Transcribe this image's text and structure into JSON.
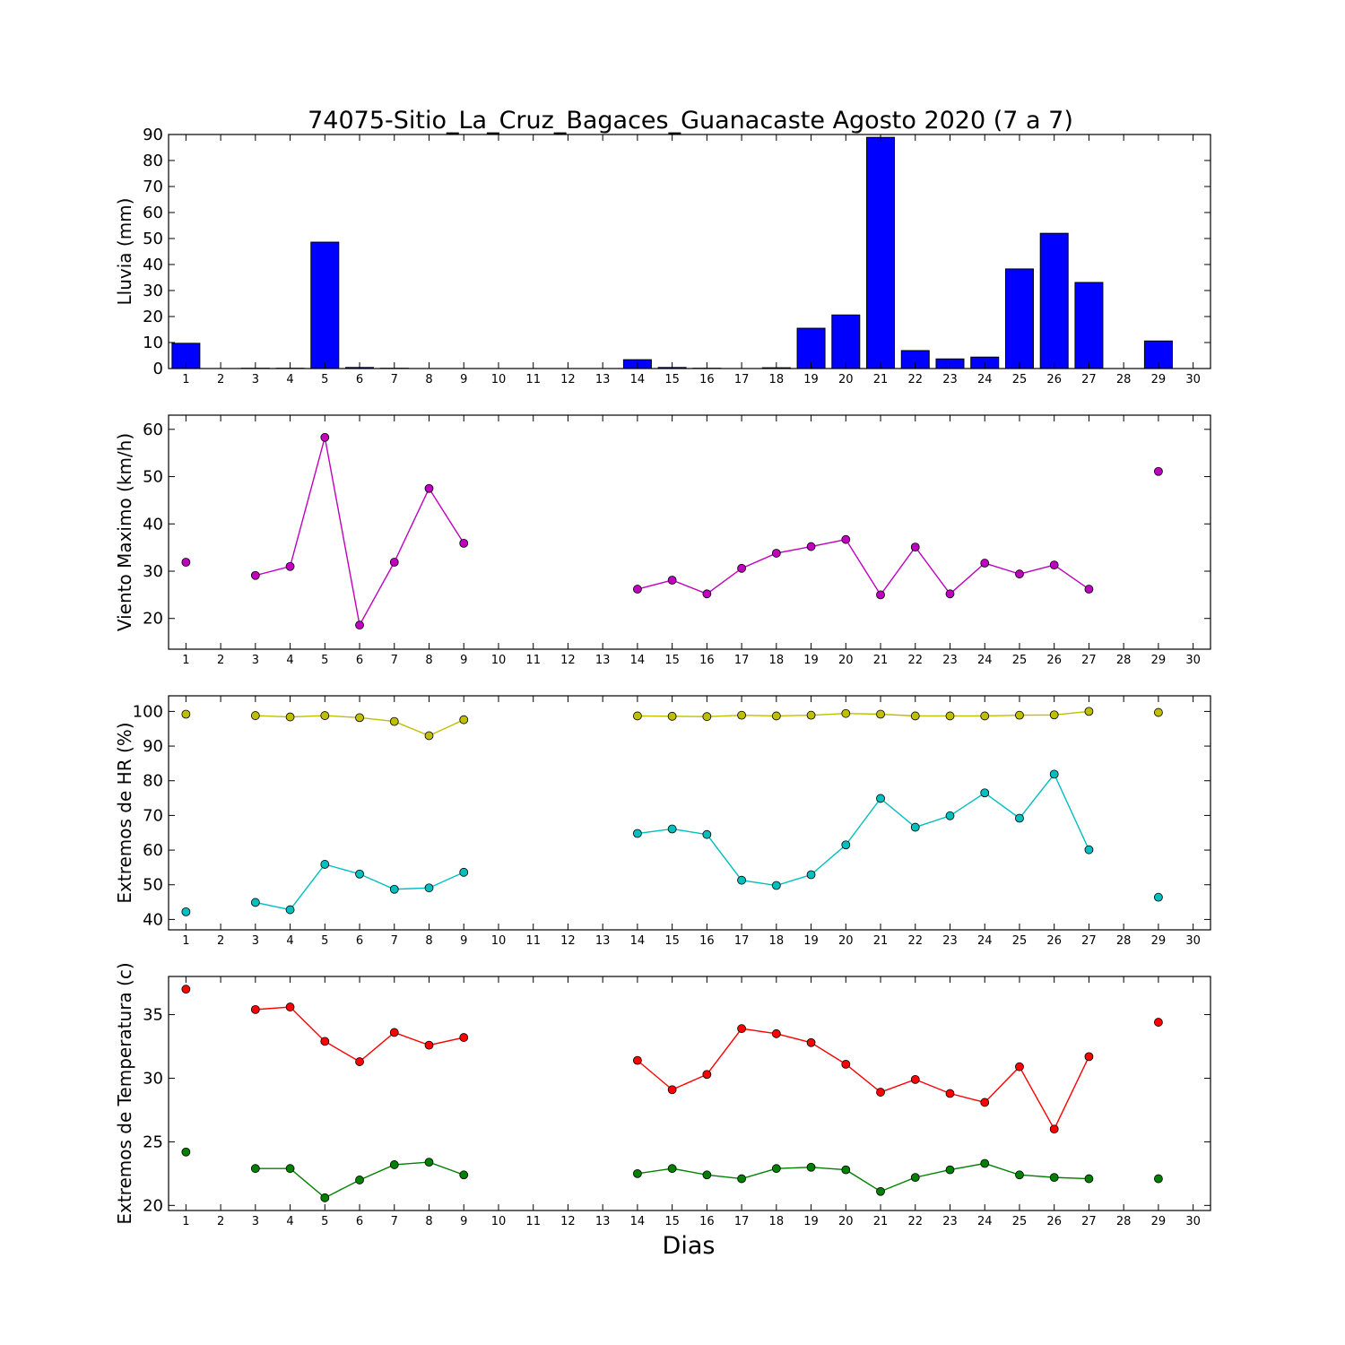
{
  "figure_title": "74075-Sitio_La_Cruz_Bagaces_Guanacaste Agosto 2020  (7 a 7)",
  "xlabel": "Dias",
  "days": [
    1,
    2,
    3,
    4,
    5,
    6,
    7,
    8,
    9,
    10,
    11,
    12,
    13,
    14,
    15,
    16,
    17,
    18,
    19,
    20,
    21,
    22,
    23,
    24,
    25,
    26,
    27,
    28,
    29,
    30
  ],
  "chart_data": [
    {
      "type": "bar",
      "ylabel": "Lluvia (mm)",
      "ylim": [
        0,
        90
      ],
      "yticks": [
        0,
        10,
        20,
        30,
        40,
        50,
        60,
        70,
        80,
        90
      ],
      "x": [
        1,
        2,
        3,
        4,
        5,
        6,
        7,
        8,
        9,
        10,
        11,
        12,
        13,
        14,
        15,
        16,
        17,
        18,
        19,
        20,
        21,
        22,
        23,
        24,
        25,
        26,
        27,
        28,
        29,
        30
      ],
      "values": [
        9.7,
        0,
        0.1,
        0.1,
        48.6,
        0.4,
        0.1,
        0,
        0,
        0,
        0,
        0,
        0,
        3.4,
        0.4,
        0.1,
        0,
        0.3,
        15.5,
        20.6,
        88.9,
        6.9,
        3.7,
        4.4,
        38.3,
        52.0,
        33.1,
        0,
        10.6,
        0
      ],
      "colors": {
        "fill": "#0000ff",
        "edge": "#000000"
      },
      "grid": false
    },
    {
      "type": "line",
      "ylabel": "Viento Maximo (km/h)",
      "ylim": [
        13.5,
        63
      ],
      "yticks": [
        20,
        30,
        40,
        50,
        60
      ],
      "x": [
        1,
        2,
        3,
        4,
        5,
        6,
        7,
        8,
        9,
        10,
        11,
        12,
        13,
        14,
        15,
        16,
        17,
        18,
        19,
        20,
        21,
        22,
        23,
        24,
        25,
        26,
        27,
        28,
        29,
        30
      ],
      "series": [
        {
          "values": [
            31.9,
            null,
            29.1,
            31.0,
            58.3,
            18.6,
            31.9,
            47.5,
            35.9,
            null,
            null,
            null,
            null,
            26.2,
            28.1,
            25.2,
            30.6,
            33.8,
            35.2,
            36.7,
            25.0,
            35.1,
            25.2,
            31.7,
            29.4,
            31.3,
            26.2,
            null,
            51.1,
            null
          ],
          "color": "#bf00bf"
        }
      ],
      "grid": false
    },
    {
      "type": "line",
      "ylabel": "Extremos de HR (%)",
      "ylim": [
        37,
        104.5
      ],
      "yticks": [
        40,
        50,
        60,
        70,
        80,
        90,
        100
      ],
      "x": [
        1,
        2,
        3,
        4,
        5,
        6,
        7,
        8,
        9,
        10,
        11,
        12,
        13,
        14,
        15,
        16,
        17,
        18,
        19,
        20,
        21,
        22,
        23,
        24,
        25,
        26,
        27,
        28,
        29,
        30
      ],
      "series": [
        {
          "values": [
            99.2,
            null,
            98.8,
            98.4,
            98.8,
            98.2,
            97.1,
            93.0,
            97.6,
            null,
            null,
            null,
            null,
            98.7,
            98.6,
            98.5,
            98.9,
            98.7,
            98.9,
            99.4,
            99.2,
            98.7,
            98.7,
            98.7,
            98.9,
            99.0,
            100.0,
            null,
            99.7,
            null
          ],
          "color": "#bfbf00"
        },
        {
          "values": [
            42.2,
            null,
            44.9,
            42.8,
            55.9,
            53.1,
            48.7,
            49.1,
            53.6,
            null,
            null,
            null,
            null,
            64.8,
            66.1,
            64.5,
            51.3,
            49.8,
            52.9,
            61.5,
            74.9,
            66.6,
            69.9,
            76.5,
            69.2,
            81.9,
            60.1,
            null,
            46.4,
            null
          ],
          "color": "#00bfbf"
        }
      ],
      "grid": false
    },
    {
      "type": "line",
      "ylabel": "Extremos de Temperatura (c)",
      "ylim": [
        19.6,
        38
      ],
      "yticks": [
        20,
        25,
        30,
        35
      ],
      "x": [
        1,
        2,
        3,
        4,
        5,
        6,
        7,
        8,
        9,
        10,
        11,
        12,
        13,
        14,
        15,
        16,
        17,
        18,
        19,
        20,
        21,
        22,
        23,
        24,
        25,
        26,
        27,
        28,
        29,
        30
      ],
      "series": [
        {
          "values": [
            37.0,
            null,
            35.4,
            35.6,
            32.9,
            31.3,
            33.6,
            32.6,
            33.2,
            null,
            null,
            null,
            null,
            31.4,
            29.1,
            30.3,
            33.9,
            33.5,
            32.8,
            31.1,
            28.9,
            29.9,
            28.8,
            28.1,
            30.9,
            26.0,
            31.7,
            null,
            34.4,
            null
          ],
          "color": "#ff0000"
        },
        {
          "values": [
            24.2,
            null,
            22.9,
            22.9,
            20.6,
            22.0,
            23.2,
            23.4,
            22.4,
            null,
            null,
            null,
            null,
            22.5,
            22.9,
            22.4,
            22.1,
            22.9,
            23.0,
            22.8,
            21.1,
            22.2,
            22.8,
            23.3,
            22.4,
            22.2,
            22.1,
            null,
            22.1,
            null
          ],
          "color": "#008000"
        }
      ],
      "grid": false
    }
  ]
}
